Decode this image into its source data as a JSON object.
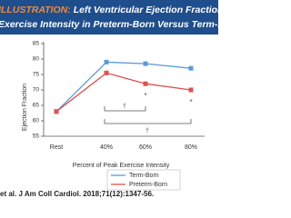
{
  "header": {
    "label": "ILLUSTRATION:",
    "title_line1": "Left Ventricular Ejection Fraction Wi",
    "title_line2": "Exercise Intensity in Preterm-Born Versus Term-Born You"
  },
  "chart_data": {
    "type": "line",
    "categories": [
      "Rest",
      "40%",
      "60%",
      "80%"
    ],
    "series": [
      {
        "name": "Term-Born",
        "color": "#5b9bd5",
        "values": [
          63,
          79,
          78.5,
          77
        ]
      },
      {
        "name": "Preterm-Born",
        "color": "#d9534f",
        "values": [
          63,
          75.5,
          72,
          70
        ]
      }
    ],
    "ylim": [
      55,
      85
    ],
    "yticks": [
      55,
      60,
      65,
      70,
      75,
      80,
      85
    ],
    "y_label": "Ejection Fraction",
    "x_label": "Percent of Peak Exercise Intensity",
    "annotations": [
      "*",
      "*",
      "†",
      "†"
    ]
  },
  "footer": {
    "citation": "et al. J Am Coll Cardiol. 2018;71(12):1347-56."
  }
}
